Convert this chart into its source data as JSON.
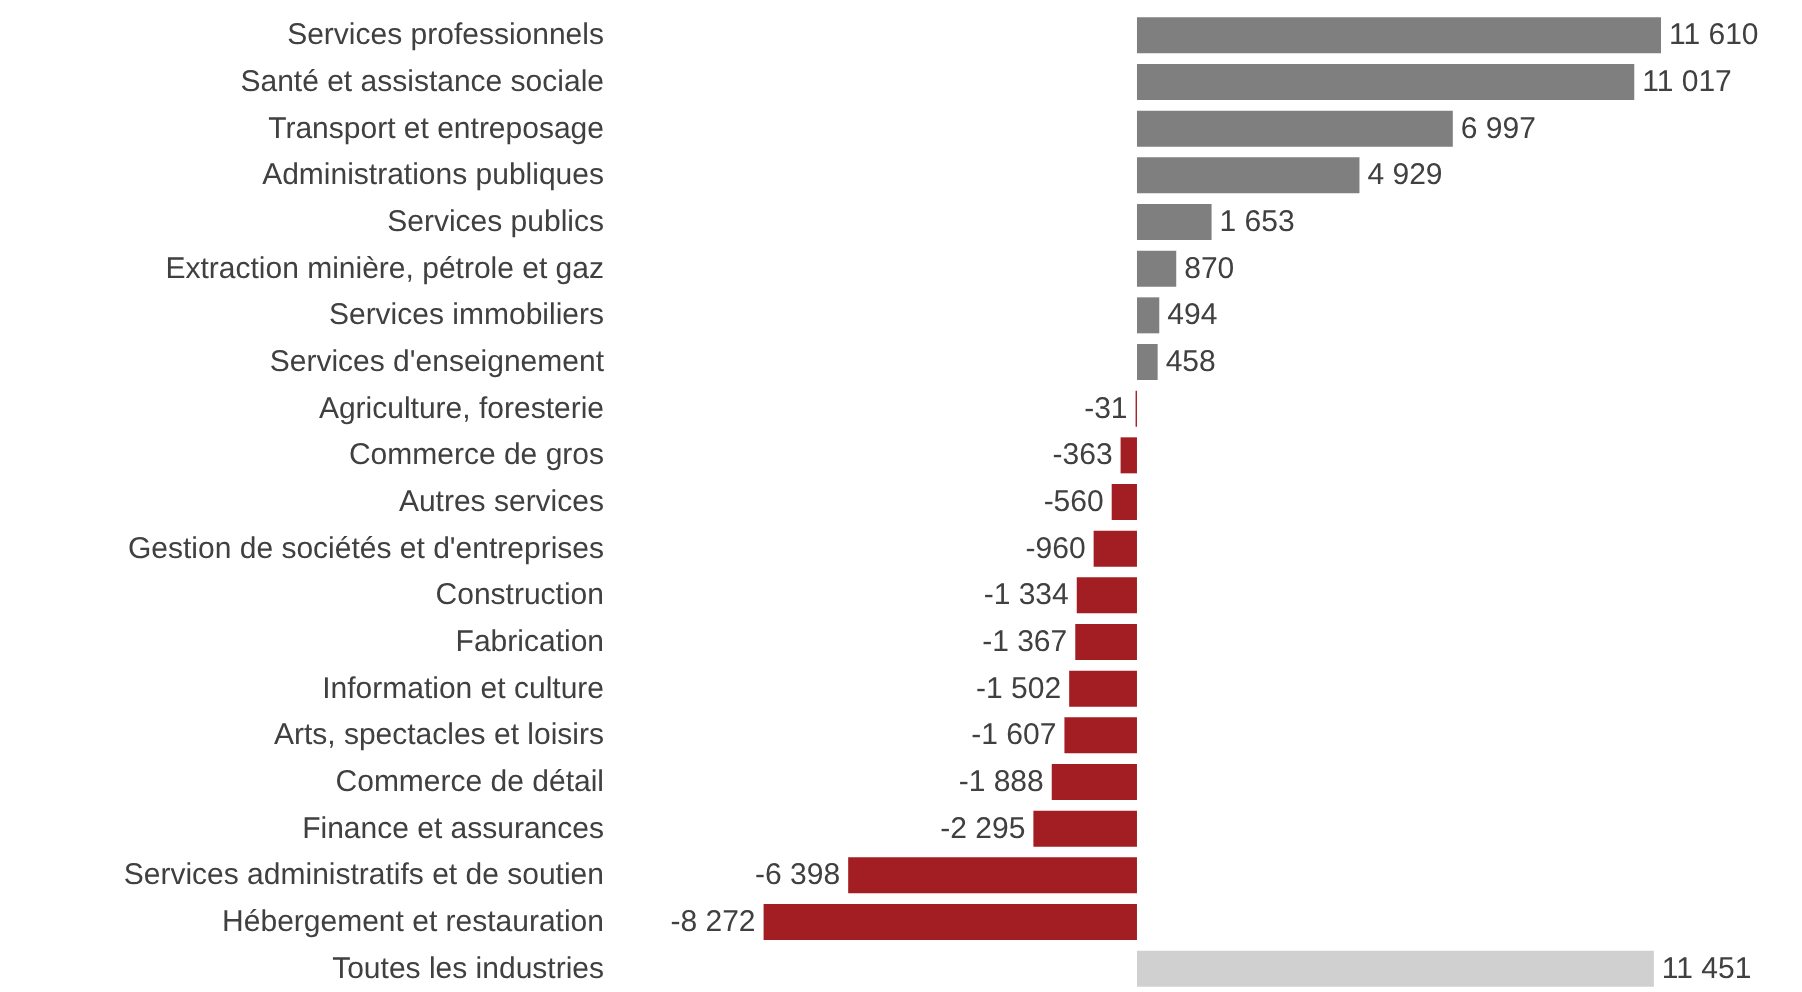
{
  "chart_data": {
    "type": "bar",
    "orientation": "horizontal",
    "categories": [
      "Services professionnels",
      "Santé et assistance sociale",
      "Transport et entreposage",
      "Administrations publiques",
      "Services publics",
      "Extraction minière, pétrole et gaz",
      "Services immobiliers",
      "Services d'enseignement",
      "Agriculture, foresterie",
      "Commerce de gros",
      "Autres services",
      "Gestion de sociétés et d'entreprises",
      "Construction",
      "Fabrication",
      "Information et culture",
      "Arts, spectacles et loisirs",
      "Commerce de détail",
      "Finance et assurances",
      "Services administratifs et de soutien",
      "Hébergement et restauration",
      "Toutes les industries"
    ],
    "values": [
      11610,
      11017,
      6997,
      4929,
      1653,
      870,
      494,
      458,
      -31,
      -363,
      -560,
      -960,
      -1334,
      -1367,
      -1502,
      -1607,
      -1888,
      -2295,
      -6398,
      -8272,
      11451
    ],
    "colors": [
      "#7f7f7f",
      "#7f7f7f",
      "#7f7f7f",
      "#7f7f7f",
      "#7f7f7f",
      "#7f7f7f",
      "#7f7f7f",
      "#7f7f7f",
      "#a31e23",
      "#a31e23",
      "#a31e23",
      "#a31e23",
      "#a31e23",
      "#a31e23",
      "#a31e23",
      "#a31e23",
      "#a31e23",
      "#a31e23",
      "#a31e23",
      "#a31e23",
      "#d0d0d0"
    ],
    "value_labels": [
      "11 610",
      "11 017",
      "6 997",
      "4 929",
      "1 653",
      "870",
      "494",
      "458",
      "-31",
      "-363",
      "-560",
      "-960",
      "-1 334",
      "-1 367",
      "-1 502",
      "-1 607",
      "-1 888",
      "-2 295",
      "-6 398",
      "-8 272",
      "11 451"
    ],
    "grid": false
  }
}
